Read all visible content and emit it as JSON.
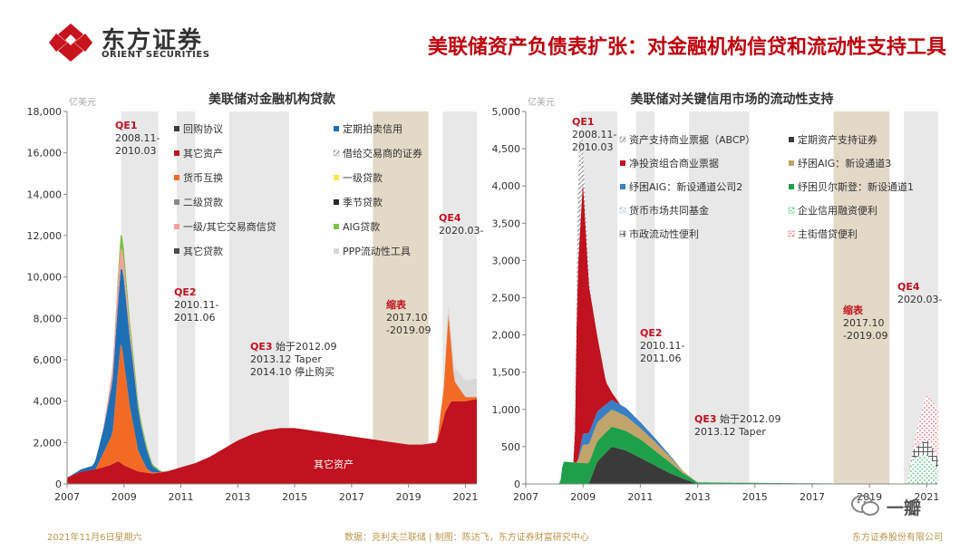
{
  "header": {
    "logo_cn": "东方证券",
    "logo_en": "ORIENT SECURITIES",
    "title": "美联储资产负债表扩张：对金融机构信贷和流动性支持工具"
  },
  "footer": {
    "date": "2021年11月6日星期六",
    "source": "数据：克利夫兰联储 | 制图：陈达飞，东方证券财富研究中心",
    "company": "东方证券股份有限公司"
  },
  "watermark": {
    "text": "一瓣"
  },
  "chart_data": [
    {
      "type": "area",
      "title": "美联储对金融机构贷款",
      "unit_label": "亿美元",
      "x_ticks": [
        "2007",
        "2009",
        "2011",
        "2013",
        "2015",
        "2017",
        "2019",
        "2021"
      ],
      "y_ticks": [
        "0",
        "2,000",
        "4,000",
        "6,000",
        "8,000",
        "10,000",
        "12,000",
        "14,000",
        "16,000",
        "18,000"
      ],
      "xlim": [
        2007,
        2021.4
      ],
      "ylim": [
        0,
        18000
      ],
      "legend": [
        {
          "name": "回购协议",
          "color": "#3a3a3a",
          "pattern": "solid"
        },
        {
          "name": "定期拍卖信用",
          "color": "#1f6fb5",
          "pattern": "solid"
        },
        {
          "name": "其它资产",
          "color": "#c1121f",
          "pattern": "solid"
        },
        {
          "name": "借给交易商的证券",
          "color": "#9a9a9a",
          "pattern": "hatch"
        },
        {
          "name": "货币互换",
          "color": "#f26b24",
          "pattern": "solid"
        },
        {
          "name": "一级贷款",
          "color": "#f4e94a",
          "pattern": "solid"
        },
        {
          "name": "二级贷款",
          "color": "#8a8a8a",
          "pattern": "solid"
        },
        {
          "name": "季节贷款",
          "color": "#2a2a2a",
          "pattern": "solid"
        },
        {
          "name": "一级/其它交易商信贷",
          "color": "#f2a09a",
          "pattern": "solid"
        },
        {
          "name": "AIG贷款",
          "color": "#7cc242",
          "pattern": "solid"
        },
        {
          "name": "其它贷款",
          "color": "#4a4a4a",
          "pattern": "solid"
        },
        {
          "name": "PPP流动性工具",
          "color": "#d9d9d9",
          "pattern": "solid"
        }
      ],
      "shaded_periods": [
        {
          "label": "QE1",
          "start": 2008.9,
          "end": 2010.2
        },
        {
          "label": "QE2",
          "start": 2010.85,
          "end": 2011.5
        },
        {
          "label": "QE3",
          "start": 2012.7,
          "end": 2014.8
        },
        {
          "label": "缩表",
          "start": 2017.75,
          "end": 2019.7
        },
        {
          "label": "QE4",
          "start": 2020.2,
          "end": 2021.4
        }
      ],
      "annotations": [
        {
          "title": "QE1",
          "text": "2008.11-\n2010.03"
        },
        {
          "title": "QE2",
          "text": "2010.11-\n2011.06"
        },
        {
          "title": "QE3",
          "text": " 始于2012.09\n2013.12 Taper\n2014.10 停止购买"
        },
        {
          "title": "缩表",
          "text": "2017.10\n-2019.09"
        },
        {
          "title": "QE4",
          "text": "2020.03-"
        }
      ],
      "inline_label": "其它资产",
      "series": [
        {
          "name": "其它资产",
          "x": [
            2007.0,
            2007.5,
            2008.0,
            2008.5,
            2008.8,
            2009.0,
            2009.5,
            2010.0,
            2010.5,
            2011.0,
            2011.5,
            2012.0,
            2012.5,
            2013.0,
            2013.5,
            2014.0,
            2014.5,
            2015.0,
            2015.5,
            2016.0,
            2016.5,
            2017.0,
            2017.5,
            2018.0,
            2018.5,
            2019.0,
            2019.5,
            2020.0,
            2020.3,
            2020.5,
            2021.0,
            2021.4
          ],
          "values": [
            300,
            600,
            700,
            900,
            1100,
            900,
            600,
            500,
            600,
            800,
            1000,
            1300,
            1700,
            2100,
            2400,
            2600,
            2700,
            2700,
            2600,
            2500,
            2400,
            2300,
            2200,
            2100,
            2000,
            1900,
            1900,
            2000,
            3500,
            4000,
            4000,
            4100
          ]
        },
        {
          "name": "货币互换",
          "x": [
            2007.0,
            2008.0,
            2008.6,
            2008.8,
            2008.9,
            2009.0,
            2009.2,
            2009.5,
            2009.8,
            2010.0,
            2010.5,
            2020.0,
            2020.25,
            2020.4,
            2020.6,
            2021.0,
            2021.4
          ],
          "values": [
            0,
            0,
            1500,
            4500,
            6000,
            5000,
            3000,
            1000,
            200,
            50,
            0,
            0,
            1500,
            4500,
            1000,
            200,
            100
          ]
        },
        {
          "name": "定期拍卖信用",
          "x": [
            2007.0,
            2007.9,
            2008.3,
            2008.7,
            2009.0,
            2009.3,
            2009.6,
            2010.0,
            2010.3
          ],
          "values": [
            0,
            200,
            1200,
            3000,
            4000,
            3000,
            1500,
            300,
            0
          ]
        },
        {
          "name": "一级/其它交易商信贷",
          "x": [
            2007.0,
            2008.2,
            2008.5,
            2008.8,
            2009.1,
            2009.5,
            2010.0
          ],
          "values": [
            0,
            0,
            400,
            1200,
            600,
            100,
            0
          ]
        },
        {
          "name": "AIG贷款",
          "x": [
            2007.0,
            2008.7,
            2008.9,
            2009.2,
            2009.6,
            2010.0,
            2010.5
          ],
          "values": [
            0,
            0,
            700,
            400,
            200,
            100,
            0
          ]
        },
        {
          "name": "PPP流动性工具",
          "x": [
            2007.0,
            2020.2,
            2020.4,
            2020.7,
            2021.0,
            2021.4
          ],
          "values": [
            0,
            0,
            500,
            700,
            800,
            900
          ]
        }
      ]
    },
    {
      "type": "area",
      "title": "美联储对关键信用市场的流动性支持",
      "unit_label": "亿美元",
      "x_ticks": [
        "2007",
        "2009",
        "2011",
        "2013",
        "2015",
        "2017",
        "2019",
        "2021"
      ],
      "y_ticks": [
        "0",
        "500",
        "1,000",
        "1,500",
        "2,000",
        "2,500",
        "3,000",
        "3,500",
        "4,000",
        "4,500",
        "5,000"
      ],
      "xlim": [
        2007,
        2021.4
      ],
      "ylim": [
        0,
        5000
      ],
      "legend": [
        {
          "name": "资产支持商业票据（ABCP）",
          "color": "#9a9a9a",
          "pattern": "hatch"
        },
        {
          "name": "定期资产支持证券",
          "color": "#3a3a3a",
          "pattern": "solid"
        },
        {
          "name": "净投资组合商业票据",
          "color": "#c1121f",
          "pattern": "solid"
        },
        {
          "name": "纾困AIG：新设通道3",
          "color": "#c2a36a",
          "pattern": "solid"
        },
        {
          "name": "纾困AIG：新设通道公司2",
          "color": "#3a7fc4",
          "pattern": "solid"
        },
        {
          "name": "纾困贝尔斯登：新设通道1",
          "color": "#1ea04b",
          "pattern": "solid"
        },
        {
          "name": "货币市场共同基金",
          "color": "#9dc3e6",
          "pattern": "dots"
        },
        {
          "name": "企业信用融资便利",
          "color": "#4cbf7a",
          "pattern": "dots"
        },
        {
          "name": "市政流动性便利",
          "color": "#5a5a5a",
          "pattern": "grid"
        },
        {
          "name": "主街借贷便利",
          "color": "#e86a78",
          "pattern": "dots"
        }
      ],
      "shaded_periods": [
        {
          "label": "QE1",
          "start": 2008.9,
          "end": 2010.2
        },
        {
          "label": "QE2",
          "start": 2010.85,
          "end": 2011.5
        },
        {
          "label": "QE3",
          "start": 2012.7,
          "end": 2014.8
        },
        {
          "label": "缩表",
          "start": 2017.75,
          "end": 2019.7
        },
        {
          "label": "QE4",
          "start": 2020.2,
          "end": 2021.4
        }
      ],
      "annotations": [
        {
          "title": "QE1",
          "text": "2008.11-\n2010.03"
        },
        {
          "title": "QE2",
          "text": "2010.11-\n2011.06"
        },
        {
          "title": "QE3",
          "text": " 始于2012.09\n2013.12 Taper"
        },
        {
          "title": "缩表",
          "text": "2017.10\n-2019.09"
        },
        {
          "title": "QE4",
          "text": "2020.03-"
        }
      ],
      "series": [
        {
          "name": "定期资产支持证券",
          "x": [
            2007.0,
            2009.2,
            2009.5,
            2010.0,
            2010.5,
            2011.0,
            2011.5,
            2012.0,
            2012.5,
            2013.0
          ],
          "values": [
            0,
            0,
            300,
            500,
            450,
            350,
            250,
            150,
            70,
            0
          ]
        },
        {
          "name": "纾困贝尔斯登：新设通道1",
          "x": [
            2007.0,
            2008.2,
            2008.3,
            2009.0,
            2010.0,
            2011.0,
            2012.0,
            2012.5,
            2013.0,
            2020.0
          ],
          "values": [
            0,
            0,
            300,
            280,
            270,
            250,
            150,
            70,
            20,
            0
          ]
        },
        {
          "name": "纾困AIG：新设通道3",
          "x": [
            2007.0,
            2008.8,
            2009.0,
            2009.5,
            2010.0,
            2010.5,
            2011.0,
            2011.5,
            2012.0,
            2012.5,
            2013.0
          ],
          "values": [
            0,
            0,
            250,
            250,
            230,
            200,
            150,
            120,
            80,
            30,
            0
          ]
        },
        {
          "name": "纾困AIG：新设通道公司2",
          "x": [
            2007.0,
            2008.8,
            2009.0,
            2009.5,
            2010.0,
            2010.5,
            2011.0,
            2011.5,
            2012.0,
            2012.5
          ],
          "values": [
            0,
            0,
            150,
            150,
            130,
            110,
            80,
            50,
            20,
            0
          ]
        },
        {
          "name": "净投资组合商业票据",
          "x": [
            2007.0,
            2008.7,
            2008.8,
            2009.0,
            2009.2,
            2009.5,
            2009.8,
            2010.0,
            2010.3
          ],
          "values": [
            0,
            0,
            2500,
            3400,
            2000,
            1000,
            300,
            100,
            0
          ]
        },
        {
          "name": "资产支持商业票据（ABCP）",
          "x": [
            2007.0,
            2008.7,
            2008.8,
            2008.9,
            2009.0,
            2009.3
          ],
          "values": [
            0,
            0,
            900,
            1500,
            400,
            0
          ]
        },
        {
          "name": "企业信用融资便利",
          "x": [
            2007.0,
            2020.3,
            2020.5,
            2021.0,
            2021.4
          ],
          "values": [
            0,
            0,
            350,
            400,
            200
          ]
        },
        {
          "name": "市政流动性便利",
          "x": [
            2007.0,
            2020.4,
            2020.5,
            2021.0,
            2021.4
          ],
          "values": [
            0,
            0,
            100,
            200,
            150
          ]
        },
        {
          "name": "主街借贷便利",
          "x": [
            2007.0,
            2020.5,
            2020.7,
            2021.0,
            2021.4
          ],
          "values": [
            0,
            0,
            300,
            600,
            650
          ]
        }
      ]
    }
  ]
}
